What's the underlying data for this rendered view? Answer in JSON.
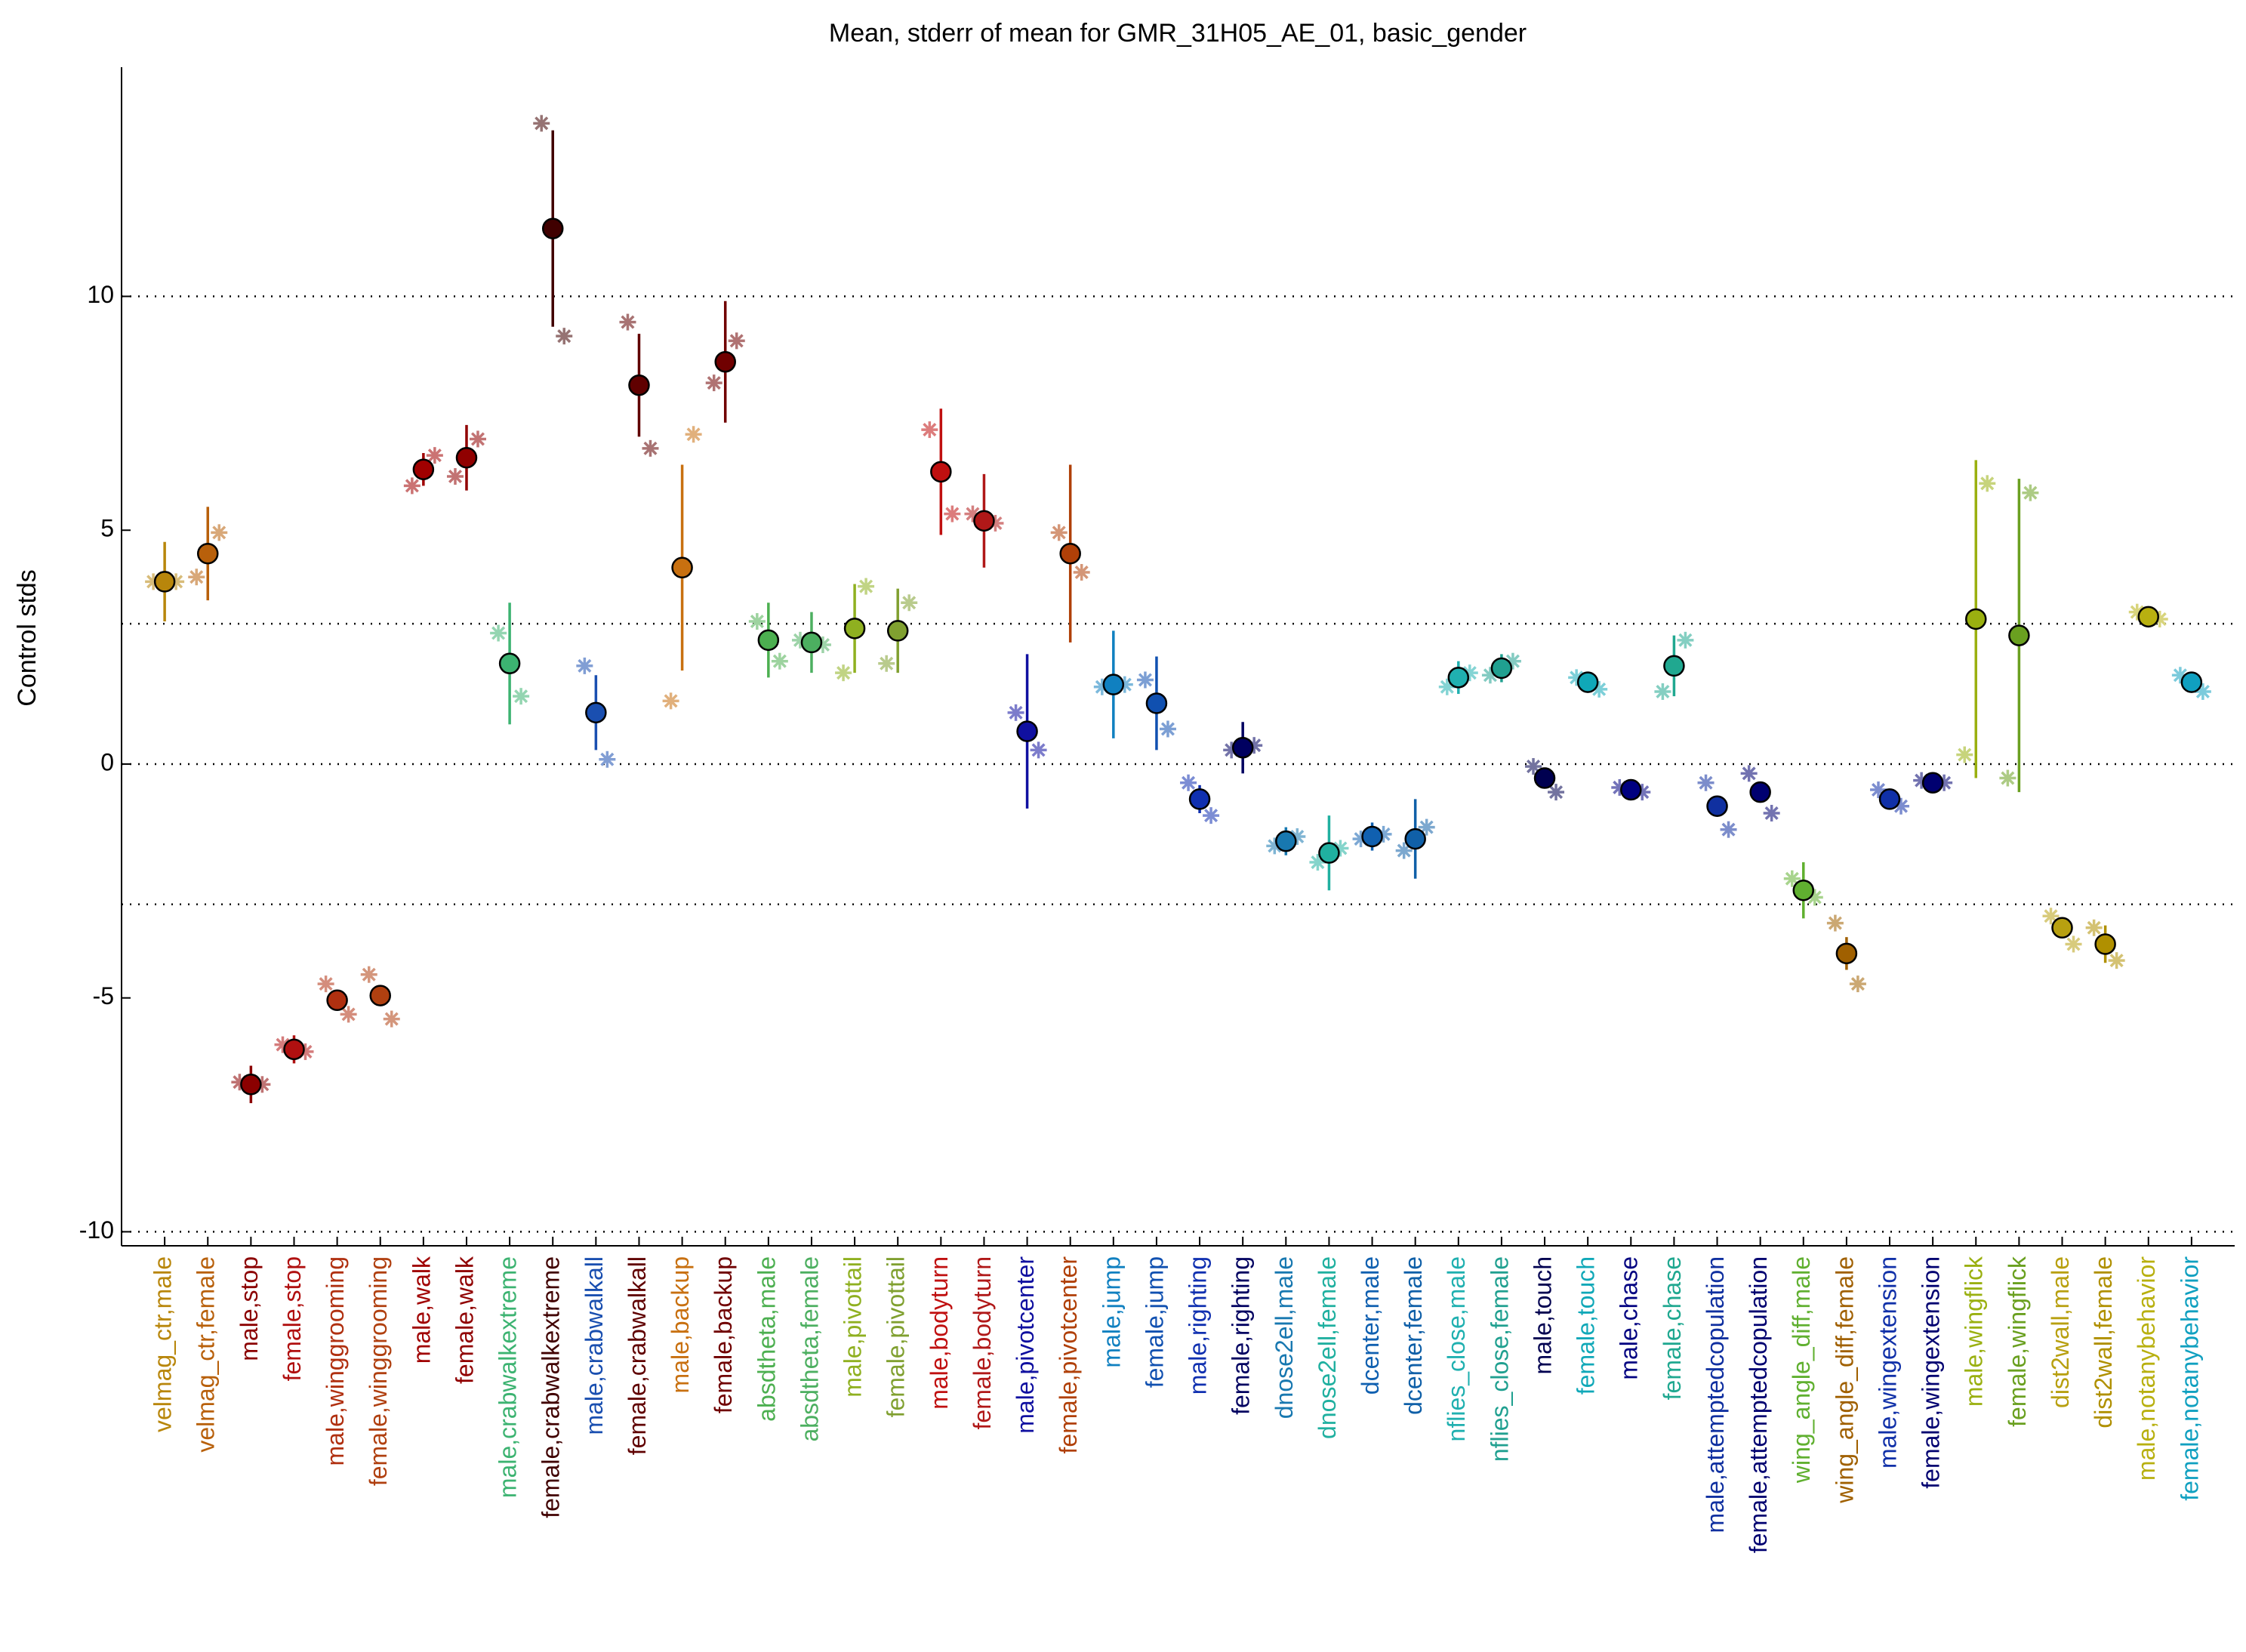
{
  "chart_data": {
    "type": "errorbar",
    "title": "Mean, stderr of mean for GMR_31H05_AE_01, basic_gender",
    "y_label": "Control stds",
    "ylim": [
      -10.3,
      14.9
    ],
    "yticks": [
      -10,
      -5,
      0,
      5,
      10
    ],
    "reference_lines": [
      -10,
      -3,
      0,
      3,
      10
    ],
    "categories": [
      "velmag_ctr,male",
      "velmag_ctr,female",
      "male,stop",
      "female,stop",
      "male,winggrooming",
      "female,winggrooming",
      "male,walk",
      "female,walk",
      "male,crabwalkextreme",
      "female,crabwalkextreme",
      "male,crabwalkall",
      "female,crabwalkall",
      "male,backup",
      "female,backup",
      "absdtheta,male",
      "absdtheta,female",
      "male,pivottail",
      "female,pivottail",
      "male,bodyturn",
      "female,bodyturn",
      "male,pivotcenter",
      "female,pivotcenter",
      "male,jump",
      "female,jump",
      "male,righting",
      "female,righting",
      "dnose2ell,male",
      "dnose2ell,female",
      "dcenter,male",
      "dcenter,female",
      "nflies_close,male",
      "nflies_close,female",
      "male,touch",
      "female,touch",
      "male,chase",
      "female,chase",
      "male,attemptedcopulation",
      "female,attemptedcopulation",
      "wing_angle_diff,male",
      "wing_angle_diff,female",
      "male,wingextension",
      "female,wingextension",
      "male,wingflick",
      "female,wingflick",
      "dist2wall,male",
      "dist2wall,female",
      "male,notanybehavior",
      "female,notanybehavior"
    ],
    "colors": [
      "#b8860b",
      "#b8600b",
      "#8b0000",
      "#b01010",
      "#b03010",
      "#b04010",
      "#a00000",
      "#900000",
      "#3cb371",
      "#400000",
      "#1a4fb0",
      "#600000",
      "#c87010",
      "#700000",
      "#4caf50",
      "#4caf60",
      "#8fb020",
      "#80a030",
      "#c01010",
      "#b01818",
      "#1010a0",
      "#b04008",
      "#1080c0",
      "#1050b0",
      "#1030b0",
      "#000060",
      "#1878b0",
      "#20b0a0",
      "#1060b0",
      "#1060a8",
      "#20b0b0",
      "#20a090",
      "#000050",
      "#10a8b8",
      "#000080",
      "#20a890",
      "#1030a0",
      "#000070",
      "#60b030",
      "#a06000",
      "#1030a8",
      "#000070",
      "#9ab010",
      "#6aa020",
      "#b8a010",
      "#b09000",
      "#b8b010",
      "#10a0c0"
    ],
    "values": [
      3.9,
      4.5,
      -6.85,
      -6.1,
      -5.05,
      -4.95,
      6.3,
      6.55,
      2.15,
      11.45,
      1.1,
      8.1,
      4.2,
      8.6,
      2.65,
      2.6,
      2.9,
      2.85,
      6.25,
      5.2,
      0.7,
      4.5,
      1.7,
      1.3,
      -0.75,
      0.35,
      -1.65,
      -1.9,
      -1.55,
      -1.6,
      1.85,
      2.05,
      -0.3,
      1.75,
      -0.55,
      2.1,
      -0.9,
      -0.6,
      -2.7,
      -4.05,
      -0.75,
      -0.4,
      3.1,
      2.75,
      -3.5,
      -3.85,
      3.15,
      1.75
    ],
    "errors": [
      0.85,
      1.0,
      0.4,
      0.3,
      0.15,
      0.15,
      0.35,
      0.7,
      1.3,
      2.1,
      0.8,
      1.1,
      2.2,
      1.3,
      0.8,
      0.65,
      0.95,
      0.9,
      1.35,
      1.0,
      1.65,
      1.9,
      1.15,
      1.0,
      0.3,
      0.55,
      0.3,
      0.8,
      0.3,
      0.85,
      0.35,
      0.3,
      0.15,
      0.2,
      0.15,
      0.65,
      0.15,
      0.15,
      0.6,
      0.35,
      0.15,
      0.1,
      3.4,
      3.35,
      0.2,
      0.4,
      0.2,
      0.2
    ],
    "star_values": [
      [
        3.9,
        3.9
      ],
      [
        4.0,
        4.95
      ],
      [
        -6.8,
        -6.85
      ],
      [
        -6.0,
        -6.15
      ],
      [
        -4.7,
        -5.35
      ],
      [
        -4.5,
        -5.45
      ],
      [
        5.95,
        6.6
      ],
      [
        6.15,
        6.95
      ],
      [
        2.8,
        1.45
      ],
      [
        13.7,
        9.15
      ],
      [
        2.1,
        0.1
      ],
      [
        9.45,
        6.75
      ],
      [
        1.35,
        7.05
      ],
      [
        8.15,
        9.05
      ],
      [
        3.05,
        2.2
      ],
      [
        2.65,
        2.55
      ],
      [
        1.95,
        3.8
      ],
      [
        2.15,
        3.45
      ],
      [
        7.15,
        5.35
      ],
      [
        5.35,
        5.15
      ],
      [
        1.1,
        0.3
      ],
      [
        4.95,
        4.1
      ],
      [
        1.65,
        1.7
      ],
      [
        1.8,
        0.75
      ],
      [
        -0.4,
        -1.1
      ],
      [
        0.3,
        0.4
      ],
      [
        -1.75,
        -1.55
      ],
      [
        -2.1,
        -1.8
      ],
      [
        -1.6,
        -1.5
      ],
      [
        -1.85,
        -1.35
      ],
      [
        1.65,
        1.95
      ],
      [
        1.9,
        2.2
      ],
      [
        -0.05,
        -0.6
      ],
      [
        1.85,
        1.6
      ],
      [
        -0.5,
        -0.6
      ],
      [
        1.55,
        2.65
      ],
      [
        -0.4,
        -1.4
      ],
      [
        -0.2,
        -1.05
      ],
      [
        -2.45,
        -2.85
      ],
      [
        -3.4,
        -4.7
      ],
      [
        -0.55,
        -0.9
      ],
      [
        -0.35,
        -0.4
      ],
      [
        0.2,
        6.0
      ],
      [
        -0.3,
        5.8
      ],
      [
        -3.25,
        -3.85
      ],
      [
        -3.5,
        -4.2
      ],
      [
        3.25,
        3.1
      ],
      [
        1.9,
        1.55
      ]
    ]
  }
}
